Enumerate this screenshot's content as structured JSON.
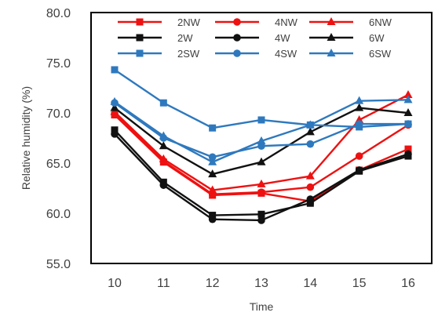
{
  "chart_data": {
    "type": "line",
    "title": "",
    "xlabel": "Time",
    "ylabel": "Relative humidity (%)",
    "x": [
      10,
      11,
      12,
      13,
      14,
      15,
      16
    ],
    "x_tick_labels": [
      "10",
      "11",
      "12",
      "13",
      "14",
      "15",
      "16"
    ],
    "ylim": [
      55.0,
      80.0
    ],
    "y_ticks": [
      55.0,
      60.0,
      65.0,
      70.0,
      75.0,
      80.0
    ],
    "y_tick_labels": [
      "55.0",
      "60.0",
      "65.0",
      "70.0",
      "75.0",
      "80.0"
    ],
    "grid": false,
    "legend_position": "top",
    "series": [
      {
        "name": "2NW",
        "color": "#ee1111",
        "marker": "square",
        "values": [
          69.8,
          65.1,
          61.8,
          62.0,
          61.2,
          64.3,
          66.4
        ]
      },
      {
        "name": "4NW",
        "color": "#ee1111",
        "marker": "circle",
        "values": [
          69.9,
          65.2,
          61.9,
          62.1,
          62.6,
          65.7,
          68.8
        ]
      },
      {
        "name": "6NW",
        "color": "#ee1111",
        "marker": "triangle",
        "values": [
          70.1,
          65.4,
          62.3,
          62.9,
          63.7,
          69.3,
          71.8
        ]
      },
      {
        "name": "2W",
        "color": "#111111",
        "marker": "square",
        "values": [
          68.3,
          63.1,
          59.8,
          59.9,
          61.0,
          64.2,
          65.7
        ]
      },
      {
        "name": "4W",
        "color": "#111111",
        "marker": "circle",
        "values": [
          67.9,
          62.8,
          59.4,
          59.3,
          61.4,
          64.3,
          65.9
        ]
      },
      {
        "name": "6W",
        "color": "#111111",
        "marker": "triangle",
        "values": [
          70.5,
          66.7,
          63.9,
          65.1,
          68.1,
          70.5,
          70.0
        ]
      },
      {
        "name": "2SW",
        "color": "#2e79be",
        "marker": "square",
        "values": [
          74.3,
          71.0,
          68.5,
          69.3,
          68.8,
          68.6,
          68.9
        ]
      },
      {
        "name": "4SW",
        "color": "#2e79be",
        "marker": "circle",
        "values": [
          71.0,
          67.5,
          65.6,
          66.7,
          66.9,
          68.9,
          68.9
        ]
      },
      {
        "name": "6SW",
        "color": "#2e79be",
        "marker": "triangle",
        "values": [
          71.1,
          67.7,
          65.1,
          67.2,
          68.8,
          71.2,
          71.3
        ]
      }
    ]
  }
}
